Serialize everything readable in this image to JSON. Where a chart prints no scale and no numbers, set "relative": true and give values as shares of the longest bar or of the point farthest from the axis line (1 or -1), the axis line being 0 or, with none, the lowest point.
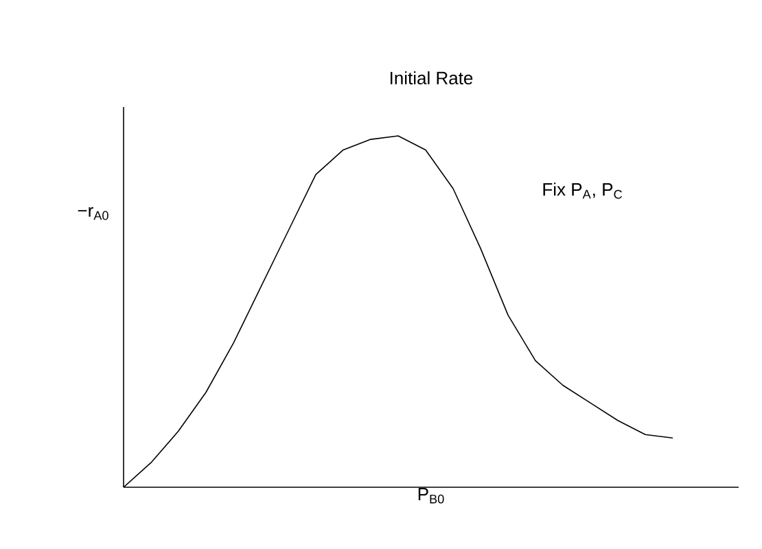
{
  "chart_data": {
    "type": "line",
    "title": "Initial Rate",
    "xlabel": "P$_{B0}$",
    "ylabel": "−r$_{A0}$",
    "annotations": [
      "Fix P$_{A}$, P$_{C}$"
    ],
    "relative": true,
    "color": "#000000",
    "marker": "none",
    "line_style": "solid",
    "categories": [
      null,
      null,
      null,
      null,
      null,
      null,
      null,
      null,
      null,
      null,
      null,
      null,
      null,
      null,
      null,
      null,
      null,
      null,
      null,
      null,
      null
    ],
    "values": [
      0,
      0.07,
      0.16,
      0.27,
      0.41,
      0.57,
      0.73,
      0.89,
      0.96,
      0.99,
      1,
      0.96,
      0.85,
      0.68,
      0.49,
      0.36,
      0.29,
      0.24,
      0.19,
      0.15,
      0.14
    ]
  }
}
